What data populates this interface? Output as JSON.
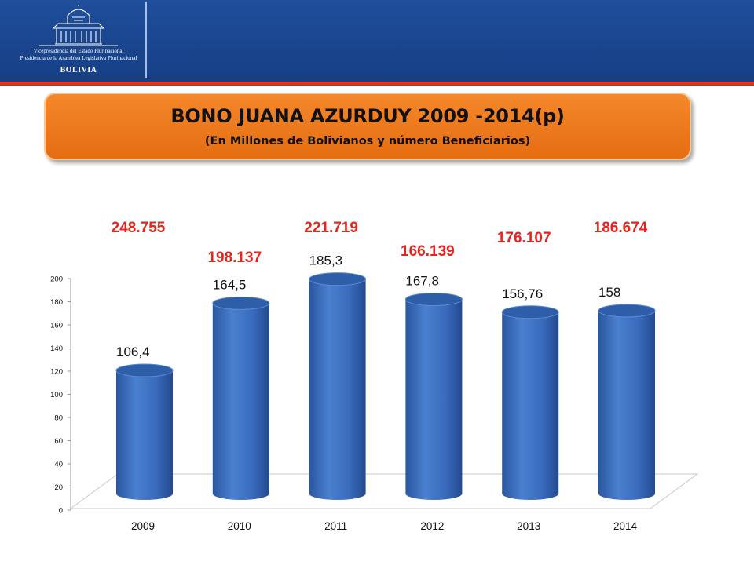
{
  "header": {
    "logo_line1": "Vicepresidencia del Estado Plurinacional",
    "logo_line2": "Presidencia de la Asamblea Legislativa Plurinacional",
    "logo_line3": "BOLIVIA"
  },
  "colors": {
    "header_blue": "#1f4e9b",
    "accent_red": "#e8231d",
    "title_orange": "#f07b1f",
    "bar_blue": "#3b6fc0"
  },
  "chart_data": {
    "type": "bar",
    "title": "BONO JUANA AZURDUY 2009 -2014(p)",
    "subtitle": "(En Millones de Bolivianos y número Beneficiarios)",
    "categories": [
      "2009",
      "2010",
      "2011",
      "2012",
      "2013",
      "2014"
    ],
    "values": [
      106.4,
      164.5,
      185.3,
      167.8,
      156.76,
      158
    ],
    "value_labels": [
      "106,4",
      "164,5",
      "185,3",
      "167,8",
      "156,76",
      "158"
    ],
    "beneficiaries": [
      "248.755",
      "198.137",
      "221.719",
      "166.139",
      "176.107",
      "186.674"
    ],
    "ylim": [
      0,
      200
    ],
    "yticks": [
      "0",
      "20",
      "40",
      "60",
      "80",
      "100",
      "120",
      "140",
      "160",
      "180",
      "200"
    ],
    "xlabel": "",
    "ylabel": "",
    "grid": false,
    "legend": "none"
  }
}
